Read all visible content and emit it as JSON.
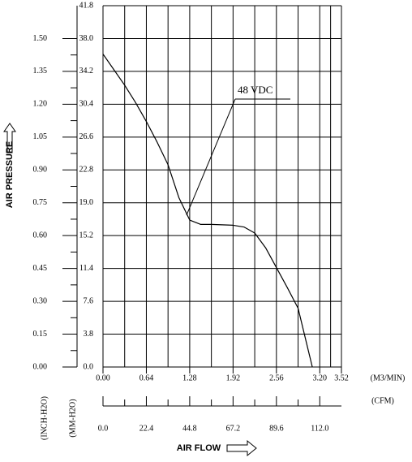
{
  "chart_data": {
    "type": "line",
    "y_axis_title": "AIR PRESSURE",
    "x_axis_title": "AIR FLOW",
    "x_unit": "(M3/MIN)",
    "x2_unit": "(CFM)",
    "y2_unit": "(INCH-H2O)",
    "y_unit": "(MM-H2O)",
    "xlim": [
      0,
      3.52
    ],
    "xticks": [
      {
        "value": 0,
        "label": "0.00"
      },
      0.64,
      1.28,
      1.92,
      2.56,
      {
        "value": 3.2,
        "label": "3.20"
      },
      3.52
    ],
    "x2lim": [
      0,
      123.2
    ],
    "x2ticks": [
      {
        "value": 0,
        "label": "0.0"
      },
      22.4,
      44.8,
      67.2,
      89.6,
      {
        "value": 112,
        "label": "112.0"
      }
    ],
    "ylim": [
      0,
      41.8
    ],
    "yticks": [
      {
        "value": 0,
        "label": "0.0"
      },
      3.8,
      7.6,
      11.4,
      15.2,
      {
        "value": 19,
        "label": "19.0"
      },
      22.8,
      26.6,
      30.4,
      34.2,
      {
        "value": 38,
        "label": "38.0"
      },
      41.8
    ],
    "y2lim": [
      0,
      1.65
    ],
    "y2ticks": [
      {
        "value": 0,
        "label": "0.00"
      },
      0.15,
      {
        "value": 0.3,
        "label": "0.30"
      },
      0.45,
      {
        "value": 0.6,
        "label": "0.60"
      },
      0.75,
      {
        "value": 0.9,
        "label": "0.90"
      },
      1.05,
      {
        "value": 1.2,
        "label": "1.20"
      },
      1.35,
      {
        "value": 1.5,
        "label": "1.50"
      }
    ],
    "grid": true,
    "series": [
      {
        "name": "48 VDC",
        "color": "#000000",
        "x": [
          0,
          0.16,
          0.32,
          0.48,
          0.64,
          0.8,
          0.96,
          1.12,
          1.28,
          1.44,
          1.6,
          1.92,
          2.08,
          2.24,
          2.4,
          2.56,
          2.72,
          2.88,
          3.09
        ],
        "values": [
          36.2,
          34.4,
          32.6,
          30.6,
          28.4,
          26.0,
          23.4,
          19.6,
          17.0,
          16.5,
          16.5,
          16.4,
          16.2,
          15.5,
          13.8,
          11.5,
          9.2,
          6.8,
          0
        ]
      }
    ]
  }
}
